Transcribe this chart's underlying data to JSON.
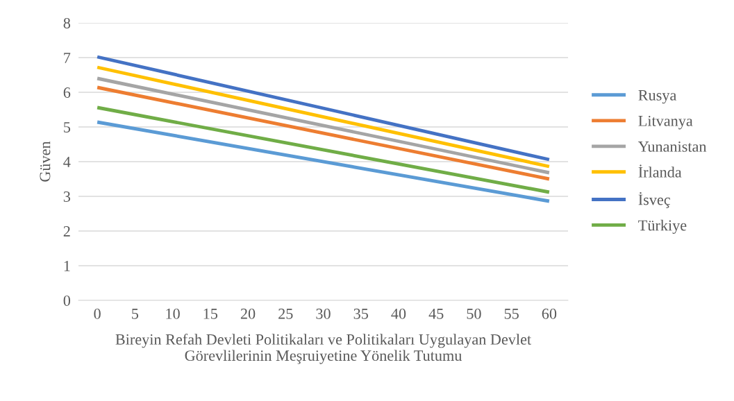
{
  "chart_data": {
    "type": "line",
    "xlabel": "Bireyin Refah Devleti Politikaları ve Politikaları Uygulayan Devlet\nGörevlilerinin Meşruiyetine Yönelik Tutumu",
    "ylabel": "Güven",
    "x": [
      0,
      60
    ],
    "series": [
      {
        "name": "Rusya",
        "color": "#5b9bd5",
        "values": [
          5.14,
          2.86
        ]
      },
      {
        "name": "Litvanya",
        "color": "#ed7d31",
        "values": [
          6.14,
          3.5
        ]
      },
      {
        "name": "Yunanistan",
        "color": "#a5a5a5",
        "values": [
          6.4,
          3.68
        ]
      },
      {
        "name": "İrlanda",
        "color": "#ffc000",
        "values": [
          6.72,
          3.86
        ]
      },
      {
        "name": "İsveç",
        "color": "#4472c4",
        "values": [
          7.02,
          4.06
        ]
      },
      {
        "name": "Türkiye",
        "color": "#70ad47",
        "values": [
          5.56,
          3.12
        ]
      }
    ],
    "xlim": [
      -2.5,
      62.5
    ],
    "xticks": [
      0,
      5,
      10,
      15,
      20,
      25,
      30,
      35,
      40,
      45,
      50,
      55,
      60
    ],
    "ylim": [
      0,
      8
    ],
    "yticks": [
      0,
      1,
      2,
      3,
      4,
      5,
      6,
      7,
      8
    ],
    "grid": "y",
    "legend": "right",
    "marker": "none",
    "line_style": "solid"
  }
}
